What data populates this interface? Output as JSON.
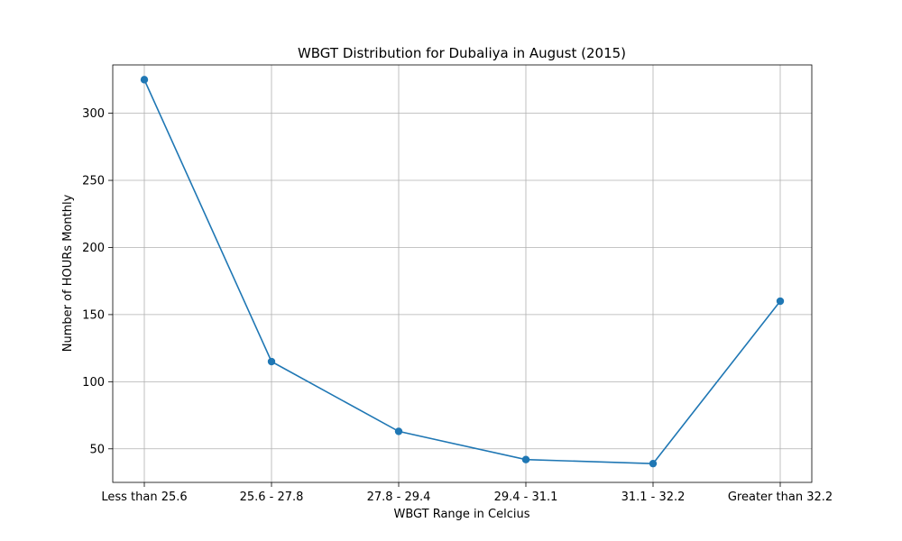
{
  "chart_data": {
    "type": "line",
    "title": "WBGT Distribution for Dubaliya in August (2015)",
    "xlabel": "WBGT Range in Celcius",
    "ylabel": "Number of HOURs Monthly",
    "categories": [
      "Less than 25.6",
      "25.6 - 27.8",
      "27.8 - 29.4",
      "29.4 - 31.1",
      "31.1 - 32.2",
      "Greater than 32.2"
    ],
    "series": [
      {
        "values": [
          325,
          115,
          63,
          42,
          39,
          160
        ]
      }
    ],
    "ylim": [
      25,
      336
    ],
    "yticks": [
      50,
      100,
      150,
      200,
      250,
      300
    ],
    "grid": true,
    "marker": "circle",
    "color": "#1f77b4"
  }
}
